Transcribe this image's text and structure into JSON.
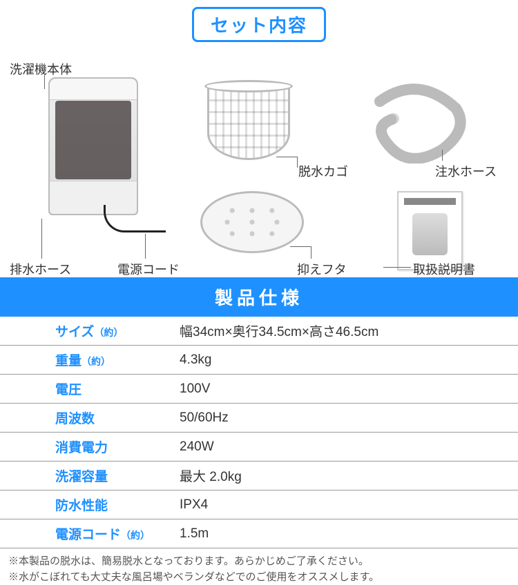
{
  "colors": {
    "accent": "#1e90ff",
    "text": "#333333",
    "border": "#999999",
    "footnote": "#555555",
    "background": "#ffffff"
  },
  "set_header": {
    "title": "セット内容",
    "title_fontsize": 26,
    "border_color": "#1e90ff",
    "text_color": "#1e90ff"
  },
  "contents": {
    "labels": {
      "washer_body": "洗濯機本体",
      "drain_hose": "排水ホース",
      "power_cord": "電源コード",
      "spin_basket": "脱水カゴ",
      "press_lid": "抑えフタ",
      "water_hose": "注水ホース",
      "manual": "取扱説明書"
    }
  },
  "spec_header": {
    "title": "製品仕様",
    "background": "#1e90ff",
    "text_color": "#ffffff",
    "fontsize": 26
  },
  "spec_table": {
    "label_color": "#1e90ff",
    "value_color": "#333333",
    "border_color": "#999999",
    "row_fontsize": 19,
    "unit_fontsize": 14,
    "rows": [
      {
        "label": "サイズ",
        "unit": "（約）",
        "value": "幅34cm×奥行34.5cm×高さ46.5cm"
      },
      {
        "label": "重量",
        "unit": "（約）",
        "value": "4.3kg"
      },
      {
        "label": "電圧",
        "unit": "",
        "value": "100V"
      },
      {
        "label": "周波数",
        "unit": "",
        "value": "50/60Hz"
      },
      {
        "label": "消費電力",
        "unit": "",
        "value": "240W"
      },
      {
        "label": "洗濯容量",
        "unit": "",
        "value": "最大 2.0kg"
      },
      {
        "label": "防水性能",
        "unit": "",
        "value": "IPX4"
      },
      {
        "label": "電源コード",
        "unit": "（約）",
        "value": "1.5m"
      }
    ]
  },
  "footnotes": [
    "※本製品の脱水は、簡易脱水となっております。あらかじめご了承ください。",
    "※水がこぼれても大丈夫な風呂場やベランダなどでのご使用をオススメします。"
  ]
}
